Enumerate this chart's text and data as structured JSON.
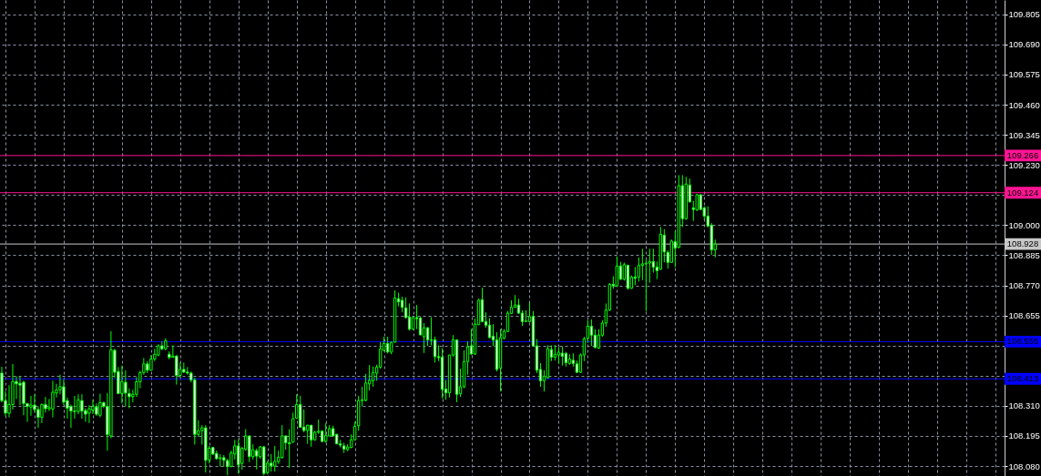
{
  "chart_data": {
    "type": "candlestick",
    "color": "#00ff00",
    "categories": [
      null,
      null,
      null,
      null,
      null,
      null,
      null,
      null,
      null,
      null,
      null,
      null,
      null,
      null,
      null,
      null,
      null,
      null,
      null,
      null,
      null,
      null,
      null,
      null,
      null,
      null,
      null,
      null,
      null,
      null,
      null,
      null,
      null,
      null,
      null,
      null,
      null,
      null,
      null,
      null,
      null,
      null,
      null,
      null,
      null,
      null,
      null,
      null,
      null,
      null,
      null,
      null,
      null,
      null,
      null,
      null,
      null,
      null,
      null,
      null,
      null,
      null,
      null,
      null,
      null,
      null,
      null,
      null,
      null,
      null,
      null,
      null,
      null,
      null,
      null,
      null,
      null,
      null,
      null,
      null,
      null,
      null,
      null,
      null,
      null,
      null,
      null,
      null,
      null,
      null,
      null,
      null,
      null,
      null,
      null,
      null,
      null,
      null,
      null,
      null,
      null,
      null,
      null,
      null,
      null,
      null,
      null,
      null,
      null,
      null,
      null,
      null,
      null,
      null,
      null,
      null,
      null,
      null,
      null,
      null,
      null,
      null,
      null,
      null,
      null,
      null,
      null,
      null,
      null,
      null,
      null,
      null,
      null,
      null,
      null,
      null,
      null,
      null,
      null,
      null,
      null,
      null,
      null,
      null,
      null,
      null,
      null,
      null,
      null,
      null,
      null,
      null,
      null,
      null,
      null,
      null,
      null,
      null,
      null,
      null,
      null,
      null,
      null,
      null,
      null,
      null,
      null,
      null,
      null,
      null,
      null,
      null,
      null,
      null,
      null,
      null,
      null,
      null,
      null,
      null,
      null,
      null,
      null,
      null,
      null,
      null,
      null,
      null,
      null,
      null,
      null,
      null,
      null,
      null,
      null,
      null,
      null,
      null,
      null,
      null,
      null,
      null,
      null,
      null,
      null,
      null,
      null,
      null,
      null,
      null,
      null,
      null,
      null,
      null,
      null,
      null,
      null,
      null,
      null,
      null,
      null,
      null,
      null,
      null,
      null,
      null,
      null,
      null,
      null,
      null,
      null,
      null,
      null,
      null,
      null,
      null,
      null,
      null,
      null,
      null,
      null,
      null,
      null,
      null,
      null,
      null,
      null,
      null,
      null,
      null,
      null,
      null,
      null,
      null,
      null,
      null,
      null,
      null,
      null,
      null,
      null,
      null,
      null,
      null,
      null,
      null,
      null,
      null,
      null,
      null,
      null,
      null,
      null,
      null,
      null,
      null
    ],
    "ohlc": [
      [
        108.435,
        108.459,
        108.323,
        108.33
      ],
      [
        108.33,
        108.365,
        108.272,
        108.282
      ],
      [
        108.282,
        108.389,
        108.266,
        108.315
      ],
      [
        108.315,
        108.47,
        108.296,
        108.403
      ],
      [
        108.403,
        108.423,
        108.336,
        108.394
      ],
      [
        108.396,
        108.423,
        108.313,
        108.389
      ],
      [
        108.4,
        108.406,
        108.274,
        108.319
      ],
      [
        108.319,
        108.32,
        108.249,
        108.308
      ],
      [
        108.305,
        108.348,
        108.272,
        108.313
      ],
      [
        108.313,
        108.354,
        108.284,
        108.296
      ],
      [
        108.296,
        108.308,
        108.226,
        108.266
      ],
      [
        108.266,
        108.319,
        108.244,
        108.315
      ],
      [
        108.315,
        108.344,
        108.284,
        108.299
      ],
      [
        108.299,
        108.336,
        108.29,
        108.303
      ],
      [
        108.298,
        108.406,
        108.266,
        108.362
      ],
      [
        108.359,
        108.394,
        108.342,
        108.371
      ],
      [
        108.371,
        108.429,
        108.354,
        108.383
      ],
      [
        108.383,
        108.412,
        108.313,
        108.324
      ],
      [
        108.33,
        108.342,
        108.261,
        108.301
      ],
      [
        108.308,
        108.315,
        108.226,
        108.29
      ],
      [
        108.29,
        108.348,
        108.261,
        108.288
      ],
      [
        108.288,
        108.354,
        108.278,
        108.333
      ],
      [
        108.33,
        108.354,
        108.261,
        108.29
      ],
      [
        108.292,
        108.301,
        108.249,
        108.278
      ],
      [
        108.282,
        108.313,
        108.244,
        108.299
      ],
      [
        108.294,
        108.333,
        108.278,
        108.308
      ],
      [
        108.306,
        108.319,
        108.272,
        108.278
      ],
      [
        108.274,
        108.356,
        108.266,
        108.322
      ],
      [
        108.322,
        108.327,
        108.301,
        108.308
      ],
      [
        108.308,
        108.359,
        108.139,
        108.2
      ],
      [
        108.195,
        108.595,
        108.186,
        108.524
      ],
      [
        108.522,
        108.528,
        108.417,
        108.438
      ],
      [
        108.441,
        108.458,
        108.354,
        108.357
      ],
      [
        108.357,
        108.464,
        108.319,
        108.403
      ],
      [
        108.4,
        108.446,
        108.308,
        108.359
      ],
      [
        108.357,
        108.377,
        108.301,
        108.345
      ],
      [
        108.345,
        108.371,
        108.324,
        108.354
      ],
      [
        108.354,
        108.42,
        108.344,
        108.402
      ],
      [
        108.402,
        108.444,
        108.377,
        108.437
      ],
      [
        108.437,
        108.493,
        108.429,
        108.47
      ],
      [
        108.47,
        108.481,
        108.435,
        108.446
      ],
      [
        108.446,
        108.504,
        108.444,
        108.489
      ],
      [
        108.489,
        108.528,
        108.481,
        108.507
      ],
      [
        108.504,
        108.545,
        108.499,
        108.539
      ],
      [
        108.539,
        108.556,
        108.522,
        108.528
      ],
      [
        108.528,
        108.568,
        108.522,
        108.559
      ],
      [
        108.507,
        108.518,
        108.487,
        108.495
      ],
      [
        108.495,
        108.541,
        108.494,
        108.5
      ],
      [
        108.5,
        108.504,
        108.391,
        108.426
      ],
      [
        108.426,
        108.475,
        108.417,
        108.449
      ],
      [
        108.449,
        108.475,
        108.435,
        108.439
      ],
      [
        108.439,
        108.458,
        108.429,
        108.435
      ],
      [
        108.435,
        108.441,
        108.4,
        108.409
      ],
      [
        108.409,
        108.417,
        108.162,
        108.201
      ],
      [
        108.201,
        108.255,
        108.191,
        108.215
      ],
      [
        108.215,
        108.236,
        108.162,
        108.226
      ],
      [
        108.226,
        108.236,
        108.055,
        108.102
      ],
      [
        108.104,
        108.157,
        108.09,
        108.148
      ],
      [
        108.151,
        108.152,
        108.122,
        108.126
      ],
      [
        108.128,
        108.139,
        108.105,
        108.108
      ],
      [
        108.108,
        108.126,
        108.078,
        108.112
      ],
      [
        108.112,
        108.122,
        108.078,
        108.102
      ],
      [
        108.101,
        108.108,
        108.045,
        108.078
      ],
      [
        108.078,
        108.139,
        108.076,
        108.13
      ],
      [
        108.126,
        108.18,
        108.105,
        108.157
      ],
      [
        108.157,
        108.182,
        108.05,
        108.085
      ],
      [
        108.09,
        108.153,
        108.066,
        108.148
      ],
      [
        108.143,
        108.221,
        108.139,
        108.195
      ],
      [
        108.195,
        108.197,
        108.095,
        108.116
      ],
      [
        108.116,
        108.163,
        108.105,
        108.142
      ],
      [
        108.139,
        108.147,
        108.067,
        108.118
      ],
      [
        108.116,
        108.157,
        108.108,
        108.153
      ],
      [
        108.153,
        108.157,
        108.044,
        108.052
      ],
      [
        108.055,
        108.099,
        108.048,
        108.091
      ],
      [
        108.091,
        108.126,
        108.059,
        108.081
      ],
      [
        108.08,
        108.157,
        108.059,
        108.098
      ],
      [
        108.097,
        108.139,
        108.088,
        108.114
      ],
      [
        108.113,
        108.236,
        108.108,
        108.195
      ],
      [
        108.195,
        108.197,
        108.142,
        108.169
      ],
      [
        108.169,
        108.221,
        108.073,
        108.165
      ],
      [
        108.171,
        108.284,
        108.169,
        108.261
      ],
      [
        108.263,
        108.354,
        108.261,
        108.315
      ],
      [
        108.315,
        108.348,
        108.226,
        108.228
      ],
      [
        108.229,
        108.296,
        108.209,
        108.216
      ],
      [
        108.216,
        108.238,
        108.165,
        108.236
      ],
      [
        108.236,
        108.237,
        108.154,
        108.18
      ],
      [
        108.18,
        108.215,
        108.177,
        108.209
      ],
      [
        108.209,
        108.258,
        108.203,
        108.213
      ],
      [
        108.213,
        108.217,
        108.171,
        108.174
      ],
      [
        108.174,
        108.244,
        108.169,
        108.197
      ],
      [
        108.195,
        108.236,
        108.194,
        108.223
      ],
      [
        108.223,
        108.234,
        108.194,
        108.195
      ],
      [
        108.201,
        108.203,
        108.163,
        108.165
      ],
      [
        108.165,
        108.18,
        108.151,
        108.16
      ],
      [
        108.157,
        108.169,
        108.13,
        108.145
      ],
      [
        108.143,
        108.163,
        108.137,
        108.153
      ],
      [
        108.151,
        108.201,
        108.148,
        108.18
      ],
      [
        108.18,
        108.249,
        108.178,
        108.232
      ],
      [
        108.234,
        108.348,
        108.215,
        108.33
      ],
      [
        108.33,
        108.383,
        108.308,
        108.333
      ],
      [
        108.331,
        108.432,
        108.327,
        108.397
      ],
      [
        108.394,
        108.466,
        108.369,
        108.408
      ],
      [
        108.406,
        108.46,
        108.383,
        108.437
      ],
      [
        108.435,
        108.467,
        108.406,
        108.458
      ],
      [
        108.458,
        108.553,
        108.452,
        108.528
      ],
      [
        108.522,
        108.574,
        108.518,
        108.548
      ],
      [
        108.548,
        108.574,
        108.51,
        108.516
      ],
      [
        108.515,
        108.556,
        108.507,
        108.552
      ],
      [
        108.553,
        108.751,
        108.551,
        108.722
      ],
      [
        108.719,
        108.742,
        108.69,
        108.707
      ],
      [
        108.713,
        108.727,
        108.667,
        108.686
      ],
      [
        108.684,
        108.724,
        108.643,
        108.647
      ],
      [
        108.649,
        108.701,
        108.597,
        108.603
      ],
      [
        108.603,
        108.649,
        108.601,
        108.647
      ],
      [
        108.647,
        108.695,
        108.603,
        108.643
      ],
      [
        108.645,
        108.651,
        108.579,
        108.581
      ],
      [
        108.574,
        108.626,
        108.512,
        108.608
      ],
      [
        108.608,
        108.611,
        108.539,
        108.562
      ],
      [
        108.562,
        108.649,
        108.541,
        108.56
      ],
      [
        108.562,
        108.574,
        108.475,
        108.498
      ],
      [
        108.498,
        108.541,
        108.481,
        108.494
      ],
      [
        108.496,
        108.53,
        108.338,
        108.373
      ],
      [
        108.374,
        108.409,
        108.333,
        108.36
      ],
      [
        108.36,
        108.505,
        108.342,
        108.504
      ],
      [
        108.504,
        108.58,
        108.498,
        108.562
      ],
      [
        108.562,
        108.564,
        108.324,
        108.354
      ],
      [
        108.356,
        108.452,
        108.344,
        108.383
      ],
      [
        108.383,
        108.522,
        108.377,
        108.479
      ],
      [
        108.479,
        108.556,
        108.429,
        108.535
      ],
      [
        108.539,
        108.603,
        108.504,
        108.508
      ],
      [
        108.508,
        108.643,
        108.504,
        108.622
      ],
      [
        108.62,
        108.719,
        108.618,
        108.713
      ],
      [
        108.715,
        108.761,
        108.629,
        108.632
      ],
      [
        108.632,
        108.667,
        108.608,
        108.618
      ],
      [
        108.618,
        108.645,
        108.568,
        108.571
      ],
      [
        108.576,
        108.622,
        108.539,
        108.562
      ],
      [
        108.562,
        108.591,
        108.441,
        108.449
      ],
      [
        108.455,
        108.603,
        108.365,
        108.57
      ],
      [
        108.568,
        108.603,
        108.564,
        108.595
      ],
      [
        108.594,
        108.672,
        108.591,
        108.664
      ],
      [
        108.663,
        108.713,
        108.661,
        108.687
      ],
      [
        108.687,
        108.733,
        108.684,
        108.695
      ],
      [
        108.695,
        108.719,
        108.661,
        108.664
      ],
      [
        108.664,
        108.675,
        108.615,
        108.632
      ],
      [
        108.632,
        108.675,
        108.63,
        108.634
      ],
      [
        108.632,
        108.705,
        108.63,
        108.651
      ],
      [
        108.651,
        108.672,
        108.537,
        108.539
      ],
      [
        108.539,
        108.565,
        108.435,
        108.446
      ],
      [
        108.449,
        108.473,
        108.383,
        108.406
      ],
      [
        108.406,
        108.446,
        108.365,
        108.423
      ],
      [
        108.417,
        108.541,
        108.414,
        108.528
      ],
      [
        108.525,
        108.541,
        108.481,
        108.496
      ],
      [
        108.496,
        108.542,
        108.483,
        108.507
      ],
      [
        108.504,
        108.533,
        108.47,
        108.515
      ],
      [
        108.511,
        108.536,
        108.464,
        108.499
      ],
      [
        108.51,
        108.516,
        108.46,
        108.475
      ],
      [
        108.472,
        108.507,
        108.467,
        108.489
      ],
      [
        108.484,
        108.51,
        108.46,
        108.472
      ],
      [
        108.47,
        108.483,
        108.435,
        108.438
      ],
      [
        108.438,
        108.51,
        108.435,
        108.504
      ],
      [
        108.504,
        108.574,
        108.481,
        108.566
      ],
      [
        108.568,
        108.637,
        108.55,
        108.614
      ],
      [
        108.614,
        108.64,
        108.539,
        108.58
      ],
      [
        108.58,
        108.603,
        108.53,
        108.533
      ],
      [
        108.53,
        108.603,
        108.528,
        108.58
      ],
      [
        108.58,
        108.637,
        108.574,
        108.626
      ],
      [
        108.626,
        108.701,
        108.612,
        108.676
      ],
      [
        108.676,
        108.779,
        108.672,
        108.774
      ],
      [
        108.774,
        108.805,
        108.757,
        108.768
      ],
      [
        108.768,
        108.881,
        108.765,
        108.844
      ],
      [
        108.844,
        108.86,
        108.79,
        108.794
      ],
      [
        108.794,
        108.857,
        108.788,
        108.849
      ],
      [
        108.847,
        108.849,
        108.753,
        108.759
      ],
      [
        108.759,
        108.808,
        108.757,
        108.802
      ],
      [
        108.802,
        108.84,
        108.771,
        108.797
      ],
      [
        108.802,
        108.877,
        108.785,
        108.846
      ],
      [
        108.846,
        108.91,
        108.79,
        108.852
      ],
      [
        108.852,
        108.869,
        108.672,
        108.855
      ],
      [
        108.855,
        108.91,
        108.78,
        108.861
      ],
      [
        108.861,
        108.91,
        108.819,
        108.84
      ],
      [
        108.84,
        108.861,
        108.794,
        108.826
      ],
      [
        108.832,
        108.993,
        108.829,
        108.965
      ],
      [
        108.962,
        108.985,
        108.858,
        108.898
      ],
      [
        108.896,
        108.904,
        108.834,
        108.858
      ],
      [
        108.858,
        108.945,
        108.856,
        108.939
      ],
      [
        108.937,
        108.977,
        108.84,
        108.912
      ],
      [
        108.915,
        109.191,
        108.912,
        109.151
      ],
      [
        109.151,
        109.191,
        108.993,
        109.025
      ],
      [
        109.025,
        109.185,
        109.02,
        109.157
      ],
      [
        109.153,
        109.178,
        109.086,
        109.089
      ],
      [
        109.066,
        109.093,
        109.016,
        109.06
      ],
      [
        109.058,
        109.12,
        109.054,
        109.116
      ],
      [
        109.116,
        109.118,
        109.058,
        109.06
      ],
      [
        109.066,
        109.072,
        109.02,
        109.035
      ],
      [
        109.035,
        109.072,
        108.991,
        108.997
      ],
      [
        109.0,
        109.008,
        108.887,
        108.906
      ],
      [
        108.906,
        108.945,
        108.877,
        108.928
      ],
      null,
      null,
      null,
      null,
      null,
      null,
      null,
      null,
      null,
      null,
      null,
      null,
      null,
      null,
      null,
      null,
      null,
      null,
      null,
      null,
      null,
      null,
      null,
      null,
      null,
      null,
      null,
      null,
      null,
      null,
      null,
      null,
      null,
      null,
      null,
      null,
      null,
      null,
      null,
      null,
      null,
      null,
      null,
      null,
      null,
      null,
      null,
      null,
      null,
      null,
      null,
      null,
      null,
      null,
      null,
      null,
      null,
      null,
      null,
      null,
      null,
      null,
      null,
      null,
      null,
      null,
      null,
      null,
      null,
      null,
      null,
      null,
      null,
      null,
      null,
      null,
      null,
      null,
      null
    ],
    "ylim": [
      108.042,
      109.86
    ],
    "yticks": [
      109.805,
      {
        "value": 109.69,
        "label": "109.690"
      },
      109.575,
      {
        "value": 109.46,
        "label": "109.460"
      },
      109.345,
      {
        "value": 109.23,
        "label": "109.230"
      },
      {
        "value": 109.115,
        "label": null
      },
      {
        "value": 109.0,
        "label": "109.000"
      },
      108.885,
      {
        "value": 108.77,
        "label": "108.770"
      },
      108.655,
      {
        "value": 108.54,
        "label": null
      },
      {
        "value": 108.425,
        "label": null
      },
      {
        "value": 108.31,
        "label": "108.310"
      },
      108.195,
      {
        "value": 108.08,
        "label": "108.080"
      }
    ],
    "tick_labels": "y",
    "grid": true,
    "ref_lines": [
      {
        "axis": "y",
        "value": 109.266,
        "label": "109.266",
        "color": "#ff1493"
      },
      {
        "axis": "y",
        "value": 109.124,
        "label": "109.124",
        "color": "#ff1493"
      },
      {
        "axis": "y",
        "value": 108.928,
        "label": "108.928",
        "color": "#c8c8c8"
      },
      {
        "axis": "y",
        "value": 108.555,
        "label": "108.555",
        "color": "#0000ff"
      },
      {
        "axis": "y",
        "value": 108.413,
        "label": "108.413",
        "color": "#0000ff"
      }
    ]
  }
}
